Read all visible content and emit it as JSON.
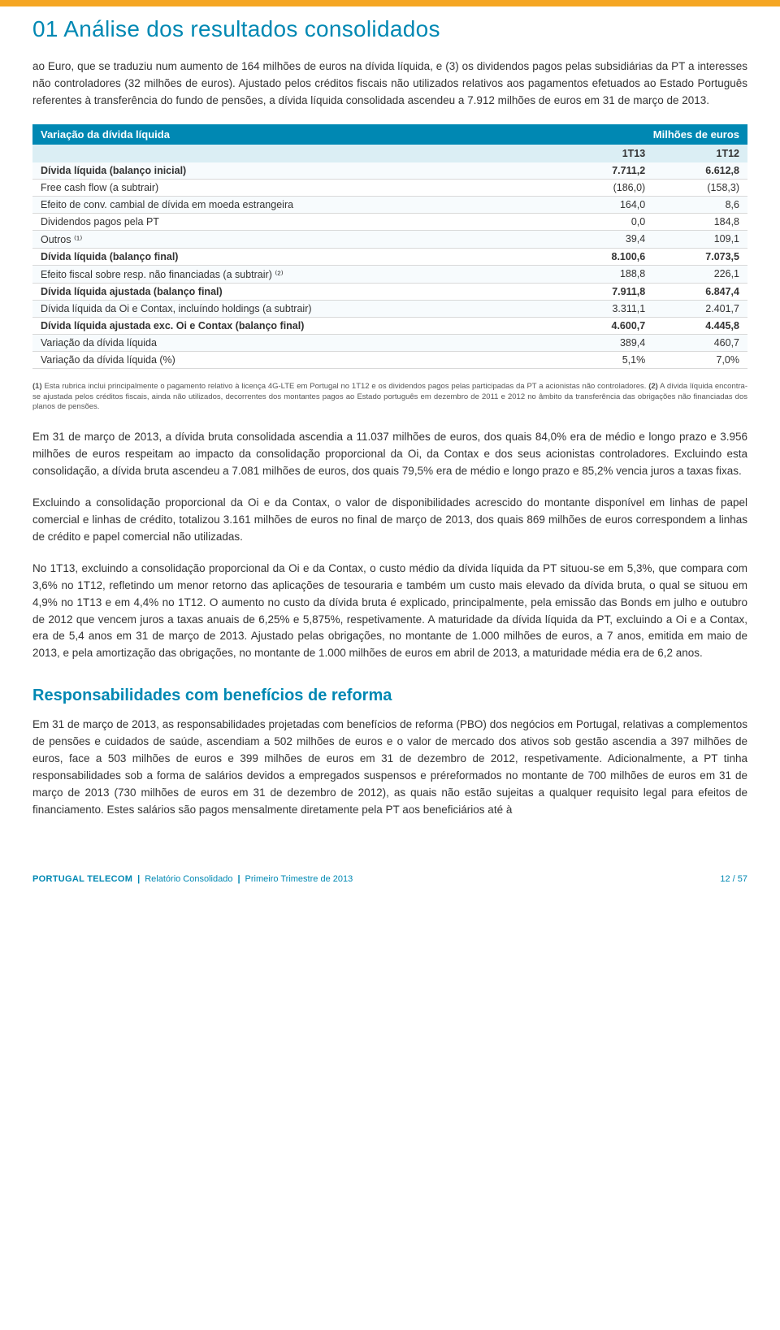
{
  "header": {
    "section_number": "01",
    "section_title": "Análise dos resultados consolidados",
    "accent_color": "#f5a623",
    "title_color": "#0088b3"
  },
  "intro_paragraph": "ao Euro, que se traduziu num aumento de 164 milhões de euros na dívida líquida, e (3) os dividendos pagos pelas subsidiárias da PT a interesses não controladores (32 milhões de euros). Ajustado pelos créditos fiscais não utilizados relativos aos pagamentos efetuados ao Estado Português referentes à transferência do fundo de pensões, a dívida líquida consolidada ascendeu a 7.912 milhões de euros em 31 de março de 2013.",
  "table": {
    "title": "Variação da dívida líquida",
    "unit": "Milhões de euros",
    "columns": [
      "",
      "1T13",
      "1T12"
    ],
    "rows": [
      {
        "label": "Dívida líquida (balanço inicial)",
        "c1": "7.711,2",
        "c2": "6.612,8",
        "bold": true
      },
      {
        "label": "Free cash flow (a subtrair)",
        "c1": "(186,0)",
        "c2": "(158,3)",
        "bold": false
      },
      {
        "label": "Efeito de conv. cambial de dívida em moeda estrangeira",
        "c1": "164,0",
        "c2": "8,6",
        "bold": false
      },
      {
        "label": "Dividendos pagos pela PT",
        "c1": "0,0",
        "c2": "184,8",
        "bold": false
      },
      {
        "label": "Outros ⁽¹⁾",
        "c1": "39,4",
        "c2": "109,1",
        "bold": false
      },
      {
        "label": "Dívida líquida (balanço final)",
        "c1": "8.100,6",
        "c2": "7.073,5",
        "bold": true
      },
      {
        "label": "Efeito fiscal sobre resp. não financiadas (a subtrair) ⁽²⁾",
        "c1": "188,8",
        "c2": "226,1",
        "bold": false
      },
      {
        "label": "Dívida líquida ajustada (balanço final)",
        "c1": "7.911,8",
        "c2": "6.847,4",
        "bold": true
      },
      {
        "label": "Dívida líquida da Oi e Contax, incluíndo holdings (a subtrair)",
        "c1": "3.311,1",
        "c2": "2.401,7",
        "bold": false
      },
      {
        "label": "Dívida líquida ajustada exc. Oi e Contax (balanço final)",
        "c1": "4.600,7",
        "c2": "4.445,8",
        "bold": true
      },
      {
        "label": "Variação da dívida líquida",
        "c1": "389,4",
        "c2": "460,7",
        "bold": false
      },
      {
        "label": "Variação da dívida líquida (%)",
        "c1": "5,1%",
        "c2": "7,0%",
        "bold": false
      }
    ],
    "header_bg": "#0088b3",
    "subheader_bg": "#dbeef4"
  },
  "footnote": {
    "n1_label": "(1)",
    "n1": " Esta rubrica inclui principalmente o pagamento relativo à licença 4G-LTE em Portugal no 1T12 e os dividendos pagos pelas participadas da PT a acionistas não controladores. ",
    "n2_label": "(2)",
    "n2": " A dívida líquida encontra-se ajustada pelos créditos fiscais, ainda não utilizados, decorrentes dos montantes pagos ao Estado português em dezembro de 2011 e 2012 no âmbito da transferência das obrigações não financiadas dos planos de pensões."
  },
  "paragraphs": [
    "Em 31 de março de 2013, a dívida bruta consolidada ascendia a 11.037 milhões de euros, dos quais 84,0% era de médio e longo prazo e 3.956 milhões de euros respeitam ao impacto da consolidação proporcional da Oi, da Contax e dos seus acionistas controladores. Excluindo esta consolidação, a dívida bruta ascendeu a 7.081 milhões de euros, dos quais 79,5% era de médio e longo prazo e 85,2% vencia juros a taxas fixas.",
    "Excluindo a consolidação proporcional da Oi e da Contax, o valor de disponibilidades acrescido do montante disponível em linhas de papel comercial e linhas de crédito, totalizou 3.161 milhões de euros no final de março de 2013, dos quais 869 milhões de euros correspondem a linhas de crédito e papel comercial não utilizadas.",
    "No 1T13, excluindo a consolidação proporcional da Oi e da Contax, o custo médio da dívida líquida da PT situou-se em 5,3%, que compara com 3,6% no 1T12, refletindo um menor retorno das aplicações de tesouraria e também um custo mais elevado da dívida bruta, o qual se situou em 4,9% no 1T13 e em 4,4% no 1T12. O aumento no custo da dívida bruta é explicado, principalmente, pela emissão das Bonds em julho e outubro de 2012 que vencem juros a taxas anuais de 6,25% e 5,875%, respetivamente. A maturidade da dívida líquida da PT, excluindo a Oi e a Contax, era de 5,4 anos em 31 de março de 2013. Ajustado pelas obrigações, no montante de 1.000 milhões de euros, a 7 anos, emitida em maio de 2013, e pela amortização das obrigações, no montante de 1.000 milhões de euros em abril de 2013, a maturidade média era de 6,2 anos."
  ],
  "section2": {
    "heading": "Responsabilidades com benefícios de reforma",
    "paragraph": "Em 31 de março de 2013, as responsabilidades projetadas com benefícios de reforma (PBO) dos negócios em Portugal, relativas a complementos de pensões e cuidados de saúde, ascendiam a 502 milhões de euros e o valor de mercado dos ativos sob gestão ascendia a 397 milhões de euros, face a 503 milhões de euros e 399 milhões de euros em 31 de dezembro de 2012, respetivamente. Adicionalmente, a PT tinha responsabilidades sob a forma de salários devidos a empregados suspensos e préreformados no montante de 700 milhões de euros em 31 de março de 2013 (730 milhões de euros em 31 de dezembro de 2012), as quais não estão sujeitas a qualquer requisito legal para efeitos de financiamento. Estes salários são pagos mensalmente diretamente pela PT aos beneficiários até à"
  },
  "footer": {
    "brand": "PORTUGAL TELECOM",
    "breadcrumb": [
      "Relatório Consolidado",
      "Primeiro Trimestre de 2013"
    ],
    "page": "12 / 57"
  }
}
